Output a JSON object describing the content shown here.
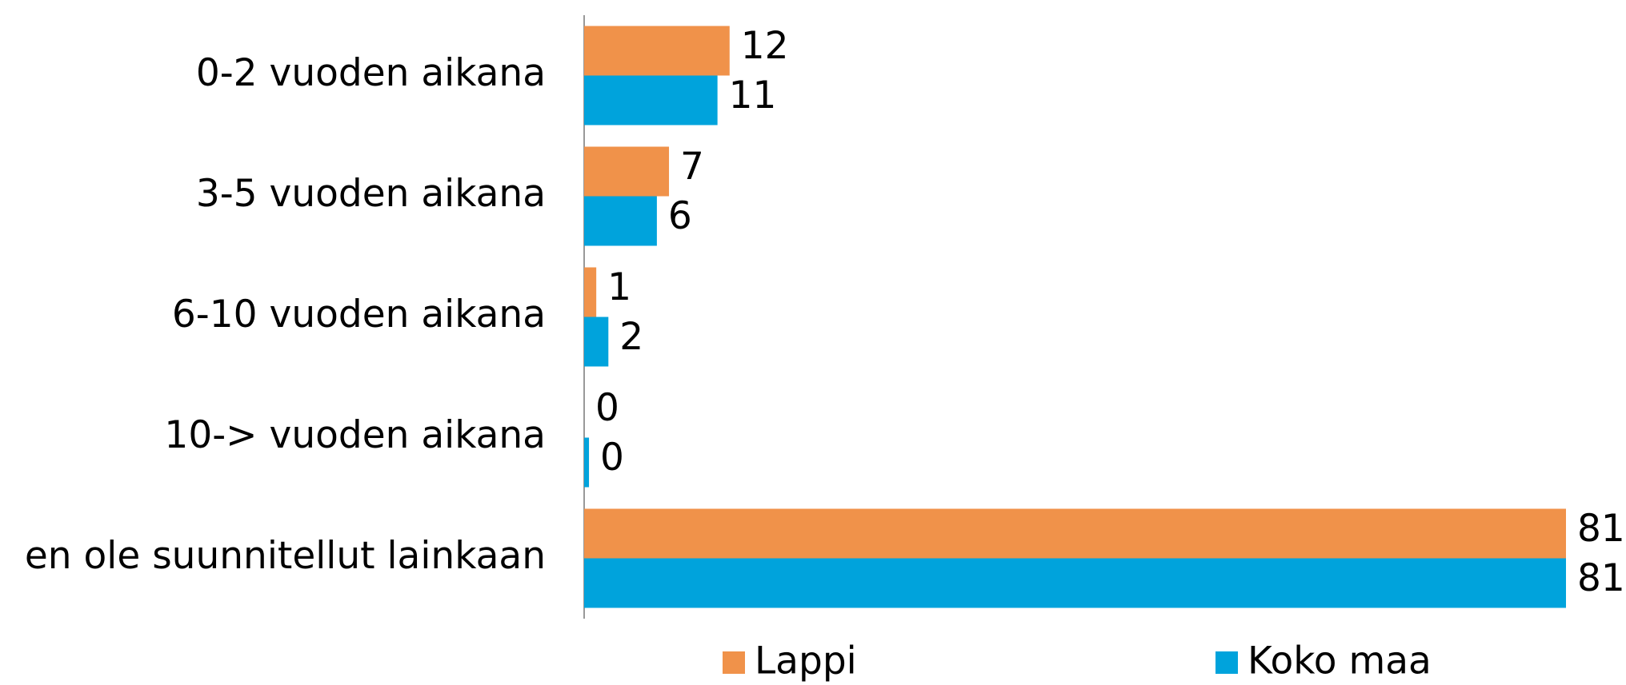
{
  "chart_data": {
    "type": "bar",
    "orientation": "horizontal",
    "categories": [
      "0-2 vuoden aikana",
      "3-5 vuoden aikana",
      "6-10 vuoden aikana",
      "10-> vuoden aikana",
      "en ole suunnitellut lainkaan"
    ],
    "series": [
      {
        "name": "Lappi",
        "color": "#f0924a",
        "values": [
          12,
          7,
          1,
          0,
          81
        ]
      },
      {
        "name": "Koko maa",
        "color": "#00a3dc",
        "values": [
          11,
          6,
          2,
          0.4,
          81
        ],
        "value_labels": [
          "11",
          "6",
          "2",
          "0",
          "81"
        ]
      }
    ],
    "xlim": [
      0,
      81
    ],
    "legend": "bottom"
  }
}
